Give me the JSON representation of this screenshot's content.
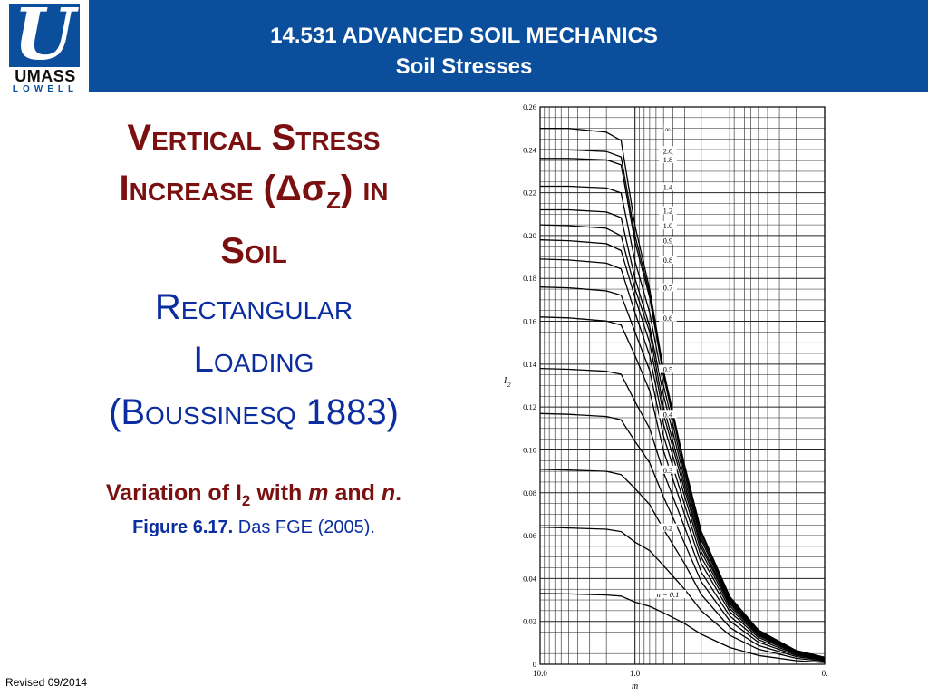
{
  "header": {
    "logo_umass": "UMASS",
    "logo_lowell": "LOWELL",
    "course_title": "14.531 ADVANCED SOIL MECHANICS",
    "course_subtitle": "Soil Stresses"
  },
  "slide": {
    "title_line1": "Vertical Stress",
    "title_line2_pre": "Increase (",
    "title_line2_delta": "Δσ",
    "title_line2_sub": "Z",
    "title_line2_post": ") in",
    "title_line3": "Soil",
    "subtitle_line1": "Rectangular",
    "subtitle_line2": "Loading",
    "subtitle_line3": "(Boussinesq 1883)",
    "caption_pre": "Variation of I",
    "caption_sub": "2",
    "caption_mid": " with ",
    "caption_m": "m",
    "caption_and": " and ",
    "caption_n": "n",
    "caption_end": ".",
    "figure_label": "Figure 6.17.",
    "figure_source": " Das FGE (2005).",
    "revised": "Revised 09/2014"
  },
  "chart_data": {
    "type": "line",
    "x_scale": "log",
    "x_reversed": true,
    "xlim": [
      10.0,
      0.01
    ],
    "ylim": [
      0,
      0.26
    ],
    "xlabel": "m",
    "ylabel": "I2",
    "xtick_labels": [
      "10.0",
      "1.0",
      "0."
    ],
    "ytick_labels": [
      "0",
      "0.02",
      "0.04",
      "0.06",
      "0.08",
      "0.10",
      "0.12",
      "0.14",
      "0.16",
      "0.18",
      "0.20",
      "0.22",
      "0.24",
      "0.26"
    ],
    "grid": true,
    "x": [
      10.0,
      5.0,
      2.0,
      1.4,
      1.0,
      0.7,
      0.5,
      0.3,
      0.2,
      0.1,
      0.05,
      0.02,
      0.01
    ],
    "series": [
      {
        "name": "∞",
        "values": [
          0.25,
          0.25,
          0.2482,
          0.2443,
          0.2046,
          0.175,
          0.137,
          0.093,
          0.062,
          0.0316,
          0.016,
          0.0064,
          0.0032
        ]
      },
      {
        "name": "2.0",
        "values": [
          0.24,
          0.24,
          0.2392,
          0.2367,
          0.2,
          0.173,
          0.136,
          0.092,
          0.0615,
          0.0314,
          0.0159,
          0.0064,
          0.0032
        ]
      },
      {
        "name": "1.8",
        "values": [
          0.236,
          0.236,
          0.2353,
          0.233,
          0.197,
          0.171,
          0.1345,
          0.0912,
          0.061,
          0.0312,
          0.0158,
          0.0064,
          0.0032
        ]
      },
      {
        "name": "1.4",
        "values": [
          0.223,
          0.223,
          0.2222,
          0.2199,
          0.188,
          0.164,
          0.13,
          0.089,
          0.0595,
          0.0305,
          0.0155,
          0.0063,
          0.0031
        ]
      },
      {
        "name": "1.2",
        "values": [
          0.212,
          0.212,
          0.211,
          0.2084,
          0.18,
          0.1575,
          0.1255,
          0.0865,
          0.058,
          0.0298,
          0.0152,
          0.0062,
          0.0031
        ]
      },
      {
        "name": "1.0",
        "values": [
          0.205,
          0.2046,
          0.2034,
          0.1999,
          0.1752,
          0.155,
          0.12,
          0.084,
          0.056,
          0.029,
          0.0148,
          0.006,
          0.003
        ]
      },
      {
        "name": "0.9",
        "values": [
          0.198,
          0.1976,
          0.1962,
          0.193,
          0.171,
          0.15,
          0.1165,
          0.0815,
          0.0545,
          0.0282,
          0.0144,
          0.0058,
          0.0029
        ]
      },
      {
        "name": "0.8",
        "values": [
          0.189,
          0.1886,
          0.1871,
          0.1844,
          0.164,
          0.144,
          0.112,
          0.0785,
          0.0525,
          0.0272,
          0.0139,
          0.0056,
          0.0028
        ]
      },
      {
        "name": "0.7",
        "values": [
          0.176,
          0.1756,
          0.1742,
          0.1722,
          0.155,
          0.137,
          0.1065,
          0.0745,
          0.05,
          0.026,
          0.0133,
          0.0054,
          0.0027
        ]
      },
      {
        "name": "0.6",
        "values": [
          0.162,
          0.1616,
          0.1601,
          0.1582,
          0.144,
          0.1275,
          0.0995,
          0.07,
          0.047,
          0.0245,
          0.0125,
          0.0051,
          0.0025
        ]
      },
      {
        "name": "0.5",
        "values": [
          0.138,
          0.1376,
          0.1367,
          0.1353,
          0.1225,
          0.11,
          0.0895,
          0.064,
          0.043,
          0.0225,
          0.0115,
          0.0047,
          0.0023
        ]
      },
      {
        "name": "0.4",
        "values": [
          0.117,
          0.1166,
          0.1156,
          0.114,
          0.104,
          0.094,
          0.078,
          0.0565,
          0.0385,
          0.0202,
          0.0103,
          0.0042,
          0.0021
        ]
      },
      {
        "name": "0.3",
        "values": [
          0.091,
          0.0906,
          0.09,
          0.0885,
          0.082,
          0.0745,
          0.063,
          0.047,
          0.0325,
          0.0172,
          0.0088,
          0.0036,
          0.0018
        ]
      },
      {
        "name": "0.2",
        "values": [
          0.064,
          0.0636,
          0.063,
          0.0619,
          0.057,
          0.053,
          0.046,
          0.035,
          0.025,
          0.0135,
          0.007,
          0.0028,
          0.0014
        ]
      },
      {
        "name": "n = 0.1",
        "values": [
          0.033,
          0.0328,
          0.0323,
          0.0318,
          0.029,
          0.027,
          0.024,
          0.019,
          0.014,
          0.0078,
          0.0041,
          0.0017,
          0.0008
        ]
      }
    ]
  },
  "colors": {
    "header_blue": "#0b4f9c",
    "title_red": "#7a1010",
    "subtitle_blue": "#0b2da0"
  }
}
